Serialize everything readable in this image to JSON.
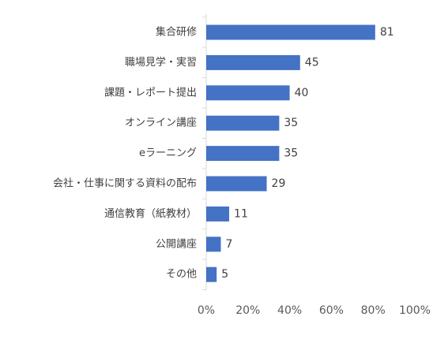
{
  "chart_data": {
    "type": "bar",
    "orientation": "horizontal",
    "categories": [
      "集合研修",
      "職場見学・実習",
      "課題・レポート提出",
      "オンライン講座",
      "eラーニング",
      "会社・仕事に関する資料の配布",
      "通信教育（紙教材）",
      "公開講座",
      "その他"
    ],
    "values": [
      81,
      45,
      40,
      35,
      35,
      29,
      11,
      7,
      5
    ],
    "xlim": [
      0,
      100
    ],
    "xticks": [
      "0%",
      "20%",
      "40%",
      "60%",
      "80%",
      "100%"
    ],
    "bar_color": "#4472c4",
    "grid": false,
    "title": "",
    "xlabel": "",
    "ylabel": ""
  }
}
